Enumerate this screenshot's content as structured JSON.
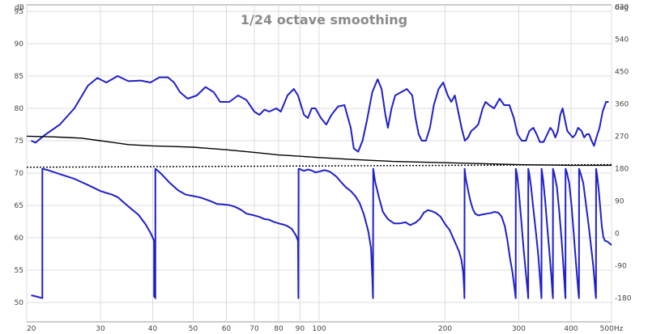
{
  "chart_data": {
    "type": "line",
    "title": "1/24 octave smoothing",
    "x_axis": {
      "unit": "Hz",
      "scale": "log",
      "range": [
        20,
        500
      ],
      "ticks": [
        20,
        30,
        40,
        50,
        60,
        70,
        80,
        90,
        100,
        200,
        300,
        400,
        500
      ],
      "tick_labels": [
        "20",
        "30",
        "40",
        "50",
        "60",
        "70",
        "80",
        "90",
        "100",
        "200",
        "300",
        "400",
        "500Hz"
      ]
    },
    "y_left": {
      "unit": "dB",
      "range": [
        47,
        96
      ],
      "ticks": [
        50,
        55,
        60,
        65,
        70,
        75,
        80,
        85,
        90,
        95
      ],
      "tick_labels": [
        "50",
        "55",
        "60",
        "65",
        "70",
        "75",
        "80",
        "85",
        "90",
        "95"
      ]
    },
    "y_right": {
      "unit": "deg",
      "range": [
        -246,
        636
      ],
      "ticks": [
        -180,
        -90,
        0,
        90,
        180,
        270,
        360,
        450,
        540,
        630
      ],
      "tick_labels": [
        "-180",
        "-90",
        "0",
        "90",
        "180",
        "270",
        "360",
        "450",
        "540",
        "630"
      ]
    },
    "grid": true,
    "series": [
      {
        "axis": "left",
        "color": "#2020c8",
        "style": "solid",
        "points": [
          [
            20.5,
            75.0
          ],
          [
            21,
            74.7
          ],
          [
            22,
            75.8
          ],
          [
            24,
            77.5
          ],
          [
            26,
            80.0
          ],
          [
            28,
            83.5
          ],
          [
            29.5,
            84.7
          ],
          [
            31,
            84.0
          ],
          [
            33,
            85.0
          ],
          [
            35,
            84.2
          ],
          [
            37.5,
            84.3
          ],
          [
            39.5,
            84.0
          ],
          [
            41.5,
            84.8
          ],
          [
            43.5,
            84.8
          ],
          [
            45,
            84.0
          ],
          [
            46.5,
            82.5
          ],
          [
            48.5,
            81.5
          ],
          [
            51,
            82.0
          ],
          [
            53.5,
            83.3
          ],
          [
            56,
            82.5
          ],
          [
            58,
            81.0
          ],
          [
            61,
            81.0
          ],
          [
            64,
            82.0
          ],
          [
            67,
            81.3
          ],
          [
            70,
            79.5
          ],
          [
            72,
            79.0
          ],
          [
            74,
            79.8
          ],
          [
            76,
            79.5
          ],
          [
            79,
            80.0
          ],
          [
            81,
            79.5
          ],
          [
            84,
            82.0
          ],
          [
            87,
            83.0
          ],
          [
            89,
            82.0
          ],
          [
            92,
            79.0
          ],
          [
            94,
            78.5
          ],
          [
            96,
            80.0
          ],
          [
            98,
            80.0
          ],
          [
            101,
            78.5
          ],
          [
            104,
            77.5
          ],
          [
            107,
            79.0
          ],
          [
            111,
            80.3
          ],
          [
            115,
            80.5
          ],
          [
            119,
            77.0
          ],
          [
            121,
            73.8
          ],
          [
            124,
            73.3
          ],
          [
            127,
            75.0
          ],
          [
            130,
            78.0
          ],
          [
            134,
            82.5
          ],
          [
            138,
            84.5
          ],
          [
            141,
            83.0
          ],
          [
            144,
            79.0
          ],
          [
            146,
            77.0
          ],
          [
            149,
            80.0
          ],
          [
            152,
            82.0
          ],
          [
            157,
            82.5
          ],
          [
            162,
            83.0
          ],
          [
            167,
            82.0
          ],
          [
            170,
            78.5
          ],
          [
            173,
            76.0
          ],
          [
            176,
            75.0
          ],
          [
            180,
            75.0
          ],
          [
            184,
            77.0
          ],
          [
            188,
            80.5
          ],
          [
            193,
            83.0
          ],
          [
            198,
            84.0
          ],
          [
            203,
            82.0
          ],
          [
            207,
            81.0
          ],
          [
            211,
            82.0
          ],
          [
            215,
            79.5
          ],
          [
            219,
            77.0
          ],
          [
            223,
            75.0
          ],
          [
            227,
            75.5
          ],
          [
            231,
            76.5
          ],
          [
            236,
            77.0
          ],
          [
            240,
            77.5
          ],
          [
            246,
            80.0
          ],
          [
            250,
            81.0
          ],
          [
            255,
            80.5
          ],
          [
            262,
            80.0
          ],
          [
            270,
            81.5
          ],
          [
            277,
            80.5
          ],
          [
            285,
            80.5
          ],
          [
            292,
            78.5
          ],
          [
            298,
            76.0
          ],
          [
            305,
            75.0
          ],
          [
            312,
            75.0
          ],
          [
            318,
            76.5
          ],
          [
            325,
            77.0
          ],
          [
            331,
            76.0
          ],
          [
            337,
            74.8
          ],
          [
            344,
            74.8
          ],
          [
            351,
            76.0
          ],
          [
            357,
            77.0
          ],
          [
            362,
            76.5
          ],
          [
            367,
            75.5
          ],
          [
            372,
            76.5
          ],
          [
            377,
            79.0
          ],
          [
            382,
            80.0
          ],
          [
            386,
            78.5
          ],
          [
            392,
            76.5
          ],
          [
            398,
            76.0
          ],
          [
            404,
            75.5
          ],
          [
            410,
            76.0
          ],
          [
            416,
            77.0
          ],
          [
            424,
            76.5
          ],
          [
            430,
            75.5
          ],
          [
            436,
            76.0
          ],
          [
            442,
            76.0
          ],
          [
            448,
            75.0
          ],
          [
            454,
            74.2
          ],
          [
            460,
            75.5
          ],
          [
            468,
            77.0
          ],
          [
            476,
            79.5
          ],
          [
            485,
            81.0
          ],
          [
            492,
            81.0
          ]
        ]
      },
      {
        "axis": "left",
        "color": "#000000",
        "style": "solid",
        "points": [
          [
            20,
            75.7
          ],
          [
            23,
            75.6
          ],
          [
            25,
            75.5
          ],
          [
            27,
            75.4
          ],
          [
            30,
            75.0
          ],
          [
            35,
            74.4
          ],
          [
            40,
            74.2
          ],
          [
            45,
            74.1
          ],
          [
            50,
            74.0
          ],
          [
            60,
            73.6
          ],
          [
            70,
            73.2
          ],
          [
            80,
            72.8
          ],
          [
            90,
            72.6
          ],
          [
            100,
            72.4
          ],
          [
            120,
            72.1
          ],
          [
            150,
            71.8
          ],
          [
            200,
            71.6
          ],
          [
            300,
            71.3
          ],
          [
            400,
            71.2
          ],
          [
            500,
            71.2
          ]
        ]
      },
      {
        "axis": "left",
        "color": "#000000",
        "style": "dotted",
        "points": [
          [
            20,
            70.9
          ],
          [
            500,
            71.3
          ]
        ]
      },
      {
        "axis": "right",
        "color": "#2020c8",
        "style": "solid",
        "points": [
          [
            20.5,
            -172
          ],
          [
            21,
            -175
          ],
          [
            21.8,
            -180
          ],
          [
            21.8,
            180
          ],
          [
            22.5,
            176
          ],
          [
            24,
            165
          ],
          [
            26,
            152
          ],
          [
            28,
            135
          ],
          [
            30,
            118
          ],
          [
            32,
            108
          ],
          [
            33,
            101
          ],
          [
            35,
            75
          ],
          [
            37,
            52
          ],
          [
            38.5,
            25
          ],
          [
            39.6,
            0
          ],
          [
            40.3,
            -20
          ],
          [
            40.3,
            -175
          ],
          [
            40.5,
            -178
          ],
          [
            40.6,
            -180
          ],
          [
            40.6,
            180
          ],
          [
            41,
            176
          ],
          [
            42,
            165
          ],
          [
            44,
            140
          ],
          [
            46,
            120
          ],
          [
            48,
            108
          ],
          [
            50,
            104
          ],
          [
            52,
            100
          ],
          [
            55,
            90
          ],
          [
            57,
            82
          ],
          [
            59,
            81
          ],
          [
            61,
            79
          ],
          [
            63,
            74
          ],
          [
            65,
            66
          ],
          [
            67,
            55
          ],
          [
            70,
            50
          ],
          [
            72,
            46
          ],
          [
            74,
            40
          ],
          [
            76,
            38
          ],
          [
            78,
            32
          ],
          [
            80,
            28
          ],
          [
            82,
            25
          ],
          [
            83.5,
            22
          ],
          [
            86,
            13
          ],
          [
            88,
            -5
          ],
          [
            89,
            -20
          ],
          [
            89.2,
            -180
          ],
          [
            89.3,
            180
          ],
          [
            90,
            179
          ],
          [
            92,
            174
          ],
          [
            94,
            178
          ],
          [
            96,
            175
          ],
          [
            98,
            170
          ],
          [
            100,
            172
          ],
          [
            103,
            176
          ],
          [
            106,
            172
          ],
          [
            110,
            158
          ],
          [
            113,
            142
          ],
          [
            116,
            128
          ],
          [
            119,
            118
          ],
          [
            122,
            104
          ],
          [
            125,
            84
          ],
          [
            128,
            52
          ],
          [
            131,
            7
          ],
          [
            133,
            -40
          ],
          [
            134,
            -120
          ],
          [
            134.5,
            -180
          ],
          [
            134.7,
            180
          ],
          [
            136,
            145
          ],
          [
            139,
            100
          ],
          [
            142,
            60
          ],
          [
            146,
            40
          ],
          [
            151,
            28
          ],
          [
            156,
            28
          ],
          [
            161,
            31
          ],
          [
            165,
            23
          ],
          [
            170,
            30
          ],
          [
            174,
            40
          ],
          [
            178,
            58
          ],
          [
            182,
            65
          ],
          [
            186,
            62
          ],
          [
            190,
            57
          ],
          [
            195,
            47
          ],
          [
            200,
            26
          ],
          [
            205,
            10
          ],
          [
            211,
            -23
          ],
          [
            216,
            -50
          ],
          [
            219,
            -75
          ],
          [
            221,
            -110
          ],
          [
            222,
            -150
          ],
          [
            222.5,
            -180
          ],
          [
            222.7,
            180
          ],
          [
            224,
            155
          ],
          [
            227,
            120
          ],
          [
            230,
            90
          ],
          [
            233,
            68
          ],
          [
            236,
            55
          ],
          [
            240,
            50
          ],
          [
            246,
            53
          ],
          [
            252,
            55
          ],
          [
            258,
            57
          ],
          [
            262,
            60
          ],
          [
            268,
            58
          ],
          [
            273,
            47
          ],
          [
            278,
            20
          ],
          [
            282,
            -20
          ],
          [
            286,
            -70
          ],
          [
            290,
            -110
          ],
          [
            293,
            -150
          ],
          [
            295,
            -180
          ],
          [
            295.2,
            180
          ],
          [
            297,
            165
          ],
          [
            300,
            120
          ],
          [
            304,
            40
          ],
          [
            308,
            -40
          ],
          [
            312,
            -110
          ],
          [
            315,
            -160
          ],
          [
            316,
            -180
          ],
          [
            316.2,
            180
          ],
          [
            318,
            165
          ],
          [
            321,
            130
          ],
          [
            325,
            70
          ],
          [
            330,
            0
          ],
          [
            334,
            -60
          ],
          [
            337,
            -120
          ],
          [
            339,
            -160
          ],
          [
            340,
            -180
          ],
          [
            340.2,
            180
          ],
          [
            343,
            150
          ],
          [
            347,
            90
          ],
          [
            351,
            20
          ],
          [
            355,
            -50
          ],
          [
            359,
            -120
          ],
          [
            361,
            -160
          ],
          [
            362,
            -180
          ],
          [
            362.2,
            180
          ],
          [
            365,
            165
          ],
          [
            370,
            130
          ],
          [
            375,
            60
          ],
          [
            380,
            -20
          ],
          [
            384,
            -100
          ],
          [
            387,
            -160
          ],
          [
            388,
            -180
          ],
          [
            388.2,
            180
          ],
          [
            391,
            170
          ],
          [
            396,
            140
          ],
          [
            401,
            80
          ],
          [
            406,
            0
          ],
          [
            411,
            -80
          ],
          [
            415,
            -140
          ],
          [
            417,
            -170
          ],
          [
            418,
            -180
          ],
          [
            418.2,
            180
          ],
          [
            422,
            165
          ],
          [
            428,
            140
          ],
          [
            434,
            85
          ],
          [
            440,
            30
          ],
          [
            446,
            -30
          ],
          [
            452,
            -90
          ],
          [
            456,
            -140
          ],
          [
            458,
            -170
          ],
          [
            459,
            -180
          ],
          [
            459.2,
            180
          ],
          [
            462,
            160
          ],
          [
            466,
            120
          ],
          [
            470,
            70
          ],
          [
            474,
            20
          ],
          [
            478,
            -10
          ],
          [
            482,
            -20
          ],
          [
            487,
            -22
          ],
          [
            492,
            -25
          ],
          [
            497,
            -30
          ],
          [
            500,
            -32
          ]
        ]
      }
    ]
  }
}
